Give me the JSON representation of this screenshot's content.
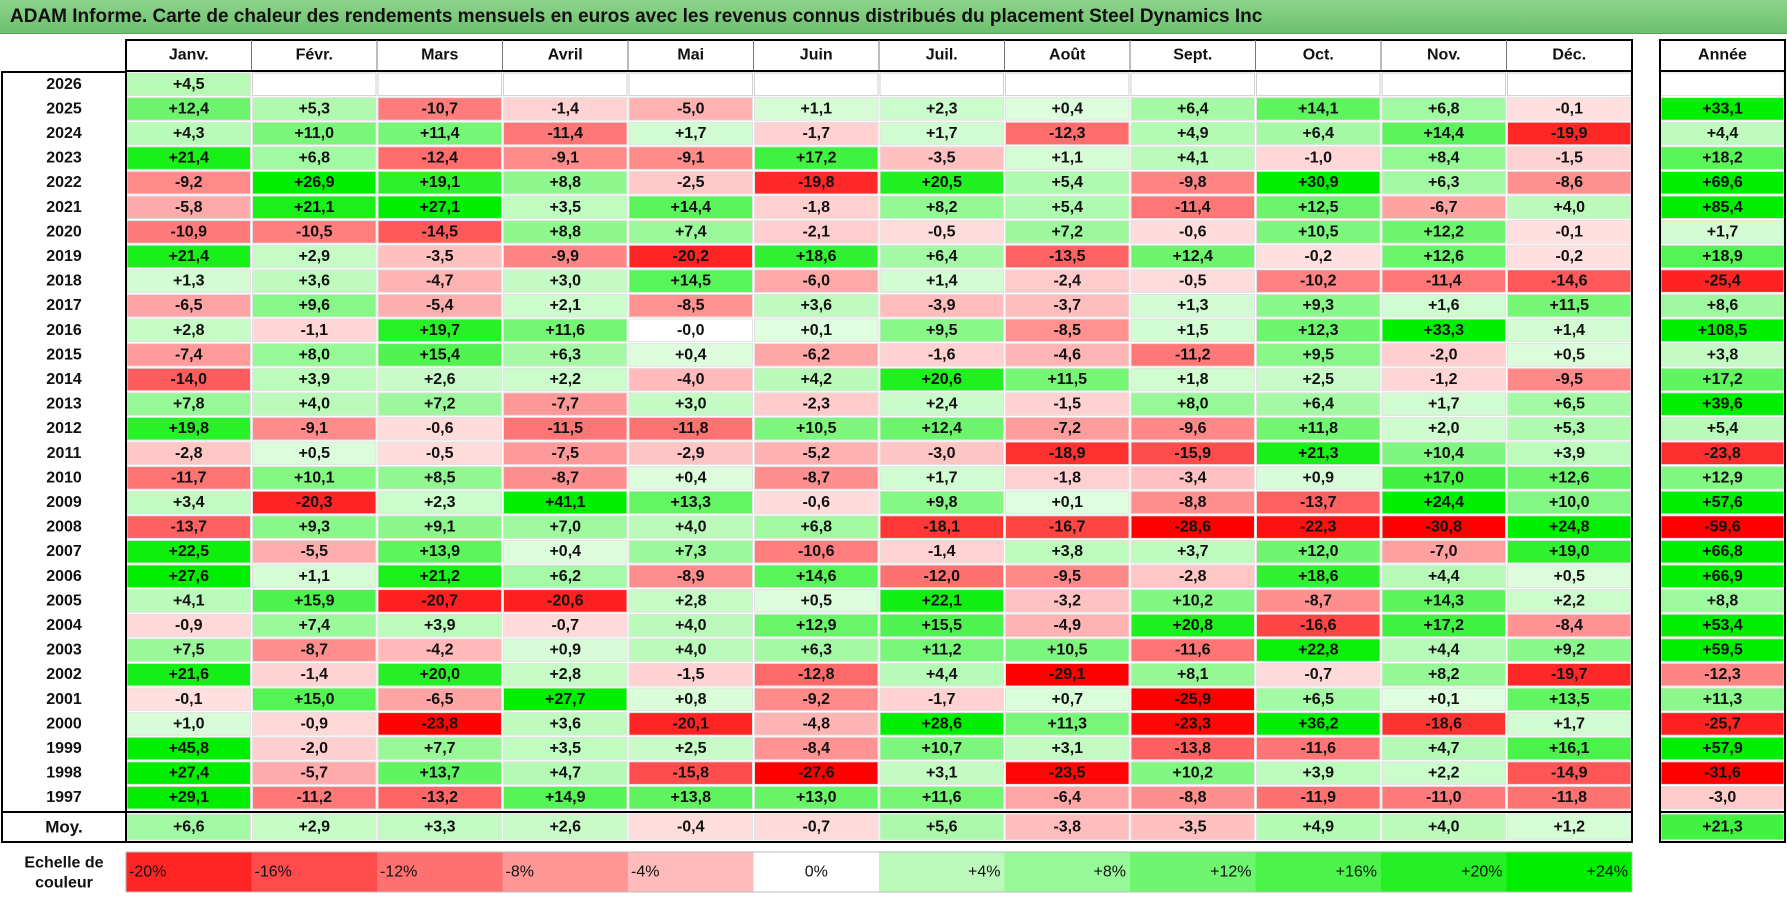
{
  "title": "ADAM Informe. Carte de chaleur des rendements mensuels en euros avec les revenus connus distribués du placement Steel Dynamics Inc",
  "chart_data": {
    "type": "heatmap",
    "months": [
      "Janv.",
      "Févr.",
      "Mars",
      "Avril",
      "Mai",
      "Juin",
      "Juil.",
      "Août",
      "Sept.",
      "Oct.",
      "Nov.",
      "Déc."
    ],
    "year_header": "Année",
    "rows": [
      {
        "year": "2026",
        "values": [
          "+4,5",
          null,
          null,
          null,
          null,
          null,
          null,
          null,
          null,
          null,
          null,
          null
        ],
        "annual": null
      },
      {
        "year": "2025",
        "values": [
          "+12,4",
          "+5,3",
          "-10,7",
          "-1,4",
          "-5,0",
          "+1,1",
          "+2,3",
          "+0,4",
          "+6,4",
          "+14,1",
          "+6,8",
          "-0,1"
        ],
        "annual": "+33,1"
      },
      {
        "year": "2024",
        "values": [
          "+4,3",
          "+11,0",
          "+11,4",
          "-11,4",
          "+1,7",
          "-1,7",
          "+1,7",
          "-12,3",
          "+4,9",
          "+6,4",
          "+14,4",
          "-19,9"
        ],
        "annual": "+4,4"
      },
      {
        "year": "2023",
        "values": [
          "+21,4",
          "+6,8",
          "-12,4",
          "-9,1",
          "-9,1",
          "+17,2",
          "-3,5",
          "+1,1",
          "+4,1",
          "-1,0",
          "+8,4",
          "-1,5"
        ],
        "annual": "+18,2"
      },
      {
        "year": "2022",
        "values": [
          "-9,2",
          "+26,9",
          "+19,1",
          "+8,8",
          "-2,5",
          "-19,8",
          "+20,5",
          "+5,4",
          "-9,8",
          "+30,9",
          "+6,3",
          "-8,6"
        ],
        "annual": "+69,6"
      },
      {
        "year": "2021",
        "values": [
          "-5,8",
          "+21,1",
          "+27,1",
          "+3,5",
          "+14,4",
          "-1,8",
          "+8,2",
          "+5,4",
          "-11,4",
          "+12,5",
          "-6,7",
          "+4,0"
        ],
        "annual": "+85,4"
      },
      {
        "year": "2020",
        "values": [
          "-10,9",
          "-10,5",
          "-14,5",
          "+8,8",
          "+7,4",
          "-2,1",
          "-0,5",
          "+7,2",
          "-0,6",
          "+10,5",
          "+12,2",
          "-0,1"
        ],
        "annual": "+1,7"
      },
      {
        "year": "2019",
        "values": [
          "+21,4",
          "+2,9",
          "-3,5",
          "-9,9",
          "-20,2",
          "+18,6",
          "+6,4",
          "-13,5",
          "+12,4",
          "-0,2",
          "+12,6",
          "-0,2"
        ],
        "annual": "+18,9"
      },
      {
        "year": "2018",
        "values": [
          "+1,3",
          "+3,6",
          "-4,7",
          "+3,0",
          "+14,5",
          "-6,0",
          "+1,4",
          "-2,4",
          "-0,5",
          "-10,2",
          "-11,4",
          "-14,6"
        ],
        "annual": "-25,4"
      },
      {
        "year": "2017",
        "values": [
          "-6,5",
          "+9,6",
          "-5,4",
          "+2,1",
          "-8,5",
          "+3,6",
          "-3,9",
          "-3,7",
          "+1,3",
          "+9,3",
          "+1,6",
          "+11,5"
        ],
        "annual": "+8,6"
      },
      {
        "year": "2016",
        "values": [
          "+2,8",
          "-1,1",
          "+19,7",
          "+11,6",
          "-0,0",
          "+0,1",
          "+9,5",
          "-8,5",
          "+1,5",
          "+12,3",
          "+33,3",
          "+1,4"
        ],
        "annual": "+108,5"
      },
      {
        "year": "2015",
        "values": [
          "-7,4",
          "+8,0",
          "+15,4",
          "+6,3",
          "+0,4",
          "-6,2",
          "-1,6",
          "-4,6",
          "-11,2",
          "+9,5",
          "-2,0",
          "+0,5"
        ],
        "annual": "+3,8"
      },
      {
        "year": "2014",
        "values": [
          "-14,0",
          "+3,9",
          "+2,6",
          "+2,2",
          "-4,0",
          "+4,2",
          "+20,6",
          "+11,5",
          "+1,8",
          "+2,5",
          "-1,2",
          "-9,5"
        ],
        "annual": "+17,2"
      },
      {
        "year": "2013",
        "values": [
          "+7,8",
          "+4,0",
          "+7,2",
          "-7,7",
          "+3,0",
          "-2,3",
          "+2,4",
          "-1,5",
          "+8,0",
          "+6,4",
          "+1,7",
          "+6,5"
        ],
        "annual": "+39,6"
      },
      {
        "year": "2012",
        "values": [
          "+19,8",
          "-9,1",
          "-0,6",
          "-11,5",
          "-11,8",
          "+10,5",
          "+12,4",
          "-7,2",
          "-9,6",
          "+11,8",
          "+2,0",
          "+5,3"
        ],
        "annual": "+5,4"
      },
      {
        "year": "2011",
        "values": [
          "-2,8",
          "+0,5",
          "-0,5",
          "-7,5",
          "-2,9",
          "-5,2",
          "-3,0",
          "-18,9",
          "-15,9",
          "+21,3",
          "+10,4",
          "+3,9"
        ],
        "annual": "-23,8"
      },
      {
        "year": "2010",
        "values": [
          "-11,7",
          "+10,1",
          "+8,5",
          "-8,7",
          "+0,4",
          "-8,7",
          "+1,7",
          "-1,8",
          "-3,4",
          "+0,9",
          "+17,0",
          "+12,6"
        ],
        "annual": "+12,9"
      },
      {
        "year": "2009",
        "values": [
          "+3,4",
          "-20,3",
          "+2,3",
          "+41,1",
          "+13,3",
          "-0,6",
          "+9,8",
          "+0,1",
          "-8,8",
          "-13,7",
          "+24,4",
          "+10,0"
        ],
        "annual": "+57,6"
      },
      {
        "year": "2008",
        "values": [
          "-13,7",
          "+9,3",
          "+9,1",
          "+7,0",
          "+4,0",
          "+6,8",
          "-18,1",
          "-16,7",
          "-28,6",
          "-22,3",
          "-30,8",
          "+24,8"
        ],
        "annual": "-59,6"
      },
      {
        "year": "2007",
        "values": [
          "+22,5",
          "-5,5",
          "+13,9",
          "+0,4",
          "+7,3",
          "-10,6",
          "-1,4",
          "+3,8",
          "+3,7",
          "+12,0",
          "-7,0",
          "+19,0"
        ],
        "annual": "+66,8"
      },
      {
        "year": "2006",
        "values": [
          "+27,6",
          "+1,1",
          "+21,2",
          "+6,2",
          "-8,9",
          "+14,6",
          "-12,0",
          "-9,5",
          "-2,8",
          "+18,6",
          "+4,4",
          "+0,5"
        ],
        "annual": "+66,9"
      },
      {
        "year": "2005",
        "values": [
          "+4,1",
          "+15,9",
          "-20,7",
          "-20,6",
          "+2,8",
          "+0,5",
          "+22,1",
          "-3,2",
          "+10,2",
          "-8,7",
          "+14,3",
          "+2,2"
        ],
        "annual": "+8,8"
      },
      {
        "year": "2004",
        "values": [
          "-0,9",
          "+7,4",
          "+3,9",
          "-0,7",
          "+4,0",
          "+12,9",
          "+15,5",
          "-4,9",
          "+20,8",
          "-16,6",
          "+17,2",
          "-8,4"
        ],
        "annual": "+53,4"
      },
      {
        "year": "2003",
        "values": [
          "+7,5",
          "-8,7",
          "-4,2",
          "+0,9",
          "+4,0",
          "+6,3",
          "+11,2",
          "+10,5",
          "-11,6",
          "+22,8",
          "+4,4",
          "+9,2"
        ],
        "annual": "+59,5"
      },
      {
        "year": "2002",
        "values": [
          "+21,6",
          "-1,4",
          "+20,0",
          "+2,8",
          "-1,5",
          "-12,8",
          "+4,4",
          "-29,1",
          "+8,1",
          "-0,7",
          "+8,2",
          "-19,7"
        ],
        "annual": "-12,3"
      },
      {
        "year": "2001",
        "values": [
          "-0,1",
          "+15,0",
          "-6,5",
          "+27,7",
          "+0,8",
          "-9,2",
          "-1,7",
          "+0,7",
          "-25,9",
          "+6,5",
          "+0,1",
          "+13,5"
        ],
        "annual": "+11,3"
      },
      {
        "year": "2000",
        "values": [
          "+1,0",
          "-0,9",
          "-23,8",
          "+3,6",
          "-20,1",
          "-4,8",
          "+28,6",
          "+11,3",
          "-23,3",
          "+36,2",
          "-18,6",
          "+1,7"
        ],
        "annual": "-25,7"
      },
      {
        "year": "1999",
        "values": [
          "+45,8",
          "-2,0",
          "+7,7",
          "+3,5",
          "+2,5",
          "-8,4",
          "+10,7",
          "+3,1",
          "-13,8",
          "-11,6",
          "+4,7",
          "+16,1"
        ],
        "annual": "+57,9"
      },
      {
        "year": "1998",
        "values": [
          "+27,4",
          "-5,7",
          "+13,7",
          "+4,7",
          "-15,8",
          "-27,6",
          "+3,1",
          "-23,5",
          "+10,2",
          "+3,9",
          "+2,2",
          "-14,9"
        ],
        "annual": "-31,6"
      },
      {
        "year": "1997",
        "values": [
          "+29,1",
          "-11,2",
          "-13,2",
          "+14,9",
          "+13,8",
          "+13,0",
          "+11,6",
          "-6,4",
          "-8,8",
          "-11,9",
          "-11,0",
          "-11,8"
        ],
        "annual": "-3,0"
      }
    ],
    "average": {
      "label": "Moy.",
      "values": [
        "+6,6",
        "+2,9",
        "+3,3",
        "+2,6",
        "-0,4",
        "-0,7",
        "+5,6",
        "-3,8",
        "-3,5",
        "+4,9",
        "+4,0",
        "+1,2"
      ],
      "annual": "+21,3"
    },
    "scale": {
      "label_line1": "Echelle de",
      "label_line2": "couleur",
      "labels": [
        "-20%",
        "-16%",
        "-12%",
        "-8%",
        "-4%",
        "0%",
        "+4%",
        "+8%",
        "+12%",
        "+16%",
        "+20%",
        "+24%"
      ],
      "values": [
        -20,
        -16,
        -12,
        -8,
        -4,
        0,
        4,
        8,
        12,
        16,
        20,
        24
      ]
    },
    "colors": {
      "neg": "#ff0000",
      "pos": "#00ee00",
      "mid": "#ffffff",
      "annual_pos": "#00ff2a",
      "annual_neg": "#ff1a1a"
    }
  }
}
